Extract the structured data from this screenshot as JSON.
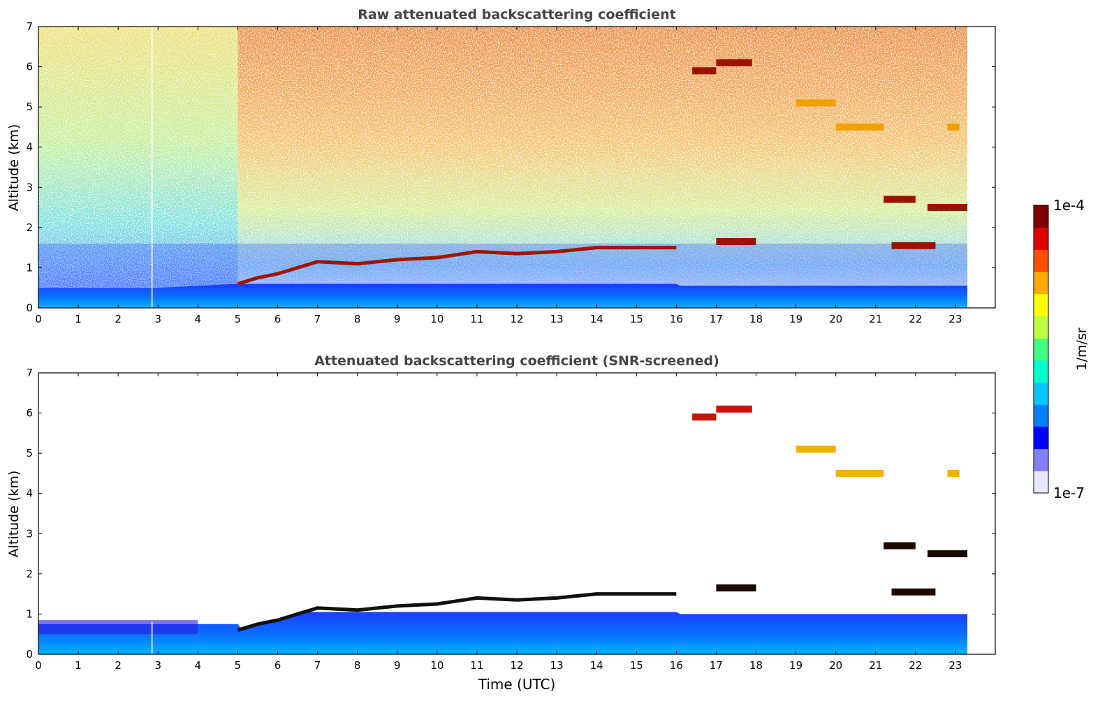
{
  "chart_data": [
    {
      "type": "heatmap",
      "title": "Raw attenuated backscattering coefficient",
      "xlabel": "",
      "ylabel": "Altitude (km)",
      "xlim": [
        0,
        24
      ],
      "ylim": [
        0,
        7
      ],
      "x_ticks": [
        "0",
        "1",
        "2",
        "3",
        "4",
        "5",
        "6",
        "7",
        "8",
        "9",
        "10",
        "11",
        "12",
        "13",
        "14",
        "15",
        "16",
        "17",
        "18",
        "19",
        "20",
        "21",
        "22",
        "23"
      ],
      "y_ticks": [
        "0",
        "1",
        "2",
        "3",
        "4",
        "5",
        "6",
        "7"
      ],
      "data_end_time": 23.3,
      "features": {
        "boundary_layer_top_km": [
          [
            0,
            0.5
          ],
          [
            3,
            0.5
          ],
          [
            4,
            0.55
          ],
          [
            5,
            0.6
          ],
          [
            5.5,
            0.75
          ],
          [
            6,
            0.85
          ],
          [
            6.5,
            1.0
          ],
          [
            7,
            1.15
          ],
          [
            8,
            1.1
          ],
          [
            9,
            1.2
          ],
          [
            10,
            1.25
          ],
          [
            11,
            1.4
          ],
          [
            12,
            1.35
          ],
          [
            13,
            1.4
          ],
          [
            14,
            1.5
          ],
          [
            15,
            1.5
          ],
          [
            16,
            1.5
          ]
        ],
        "cloud_layers": [
          {
            "x": [
              16.4,
              17.0
            ],
            "alt_km": 5.9,
            "level": "high"
          },
          {
            "x": [
              17.0,
              17.9
            ],
            "alt_km": 6.1,
            "level": "high"
          },
          {
            "x": [
              17.0,
              18.0
            ],
            "alt_km": 1.65,
            "level": "high"
          },
          {
            "x": [
              21.2,
              22.0
            ],
            "alt_km": 2.7,
            "level": "high"
          },
          {
            "x": [
              22.3,
              23.3
            ],
            "alt_km": 2.5,
            "level": "high"
          },
          {
            "x": [
              21.4,
              22.5
            ],
            "alt_km": 1.55,
            "level": "high"
          },
          {
            "x": [
              19.0,
              20.0
            ],
            "alt_km": 5.1,
            "level": "medium"
          },
          {
            "x": [
              20.0,
              21.2
            ],
            "alt_km": 4.5,
            "level": "medium"
          },
          {
            "x": [
              22.8,
              23.1
            ],
            "alt_km": 4.5,
            "level": "medium"
          }
        ]
      }
    },
    {
      "type": "heatmap",
      "title": "Attenuated backscattering coefficient (SNR-screened)",
      "xlabel": "Time (UTC)",
      "ylabel": "Altitude (km)",
      "xlim": [
        0,
        24
      ],
      "ylim": [
        0,
        7
      ],
      "x_ticks": [
        "0",
        "1",
        "2",
        "3",
        "4",
        "5",
        "6",
        "7",
        "8",
        "9",
        "10",
        "11",
        "12",
        "13",
        "14",
        "15",
        "16",
        "17",
        "18",
        "19",
        "20",
        "21",
        "22",
        "23"
      ],
      "y_ticks": [
        "0",
        "1",
        "2",
        "3",
        "4",
        "5",
        "6",
        "7"
      ]
    }
  ],
  "colorbar": {
    "max_label": "1e-4",
    "min_label": "1e-7",
    "unit_label": "1/m/sr",
    "colormap": [
      "#e6e6ff",
      "#8080ff",
      "#0000ff",
      "#0080ff",
      "#00c8ff",
      "#00ffcc",
      "#40ff80",
      "#c0ff40",
      "#ffff00",
      "#ffaa00",
      "#ff5000",
      "#e00000",
      "#800000"
    ]
  },
  "colors": {
    "title": "#444444",
    "axis": "#000000",
    "background": "#ffffff"
  }
}
